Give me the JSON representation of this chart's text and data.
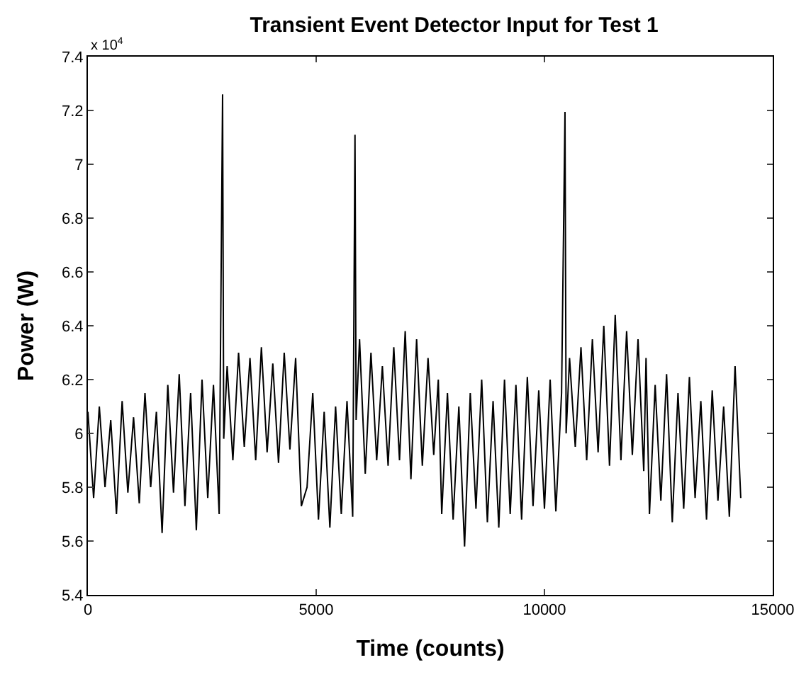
{
  "chart_data": {
    "type": "line",
    "title": "Transient Event Detector Input for Test 1",
    "xlabel": "Time (counts)",
    "ylabel": "Power (W)",
    "annotations": [
      "x 10$^{4}$"
    ],
    "xlim": [
      0,
      15000
    ],
    "xticks": [
      0,
      5000,
      10000,
      15000
    ],
    "ylim": [
      5.4,
      7.4
    ],
    "yticks": [
      5.4,
      5.6,
      5.8,
      6,
      6.2,
      6.4,
      6.6,
      6.8,
      7,
      7.2,
      7.4
    ],
    "marker": "none",
    "line_style": "solid",
    "series": [
      {
        "color": "#000000",
        "x": [
          0,
          125,
          250,
          375,
          500,
          625,
          750,
          875,
          1000,
          1125,
          1250,
          1375,
          1500,
          1625,
          1750,
          1875,
          2000,
          2125,
          2250,
          2375,
          2500,
          2625,
          2750,
          2875,
          2950,
          2975,
          3050,
          3175,
          3300,
          3425,
          3550,
          3675,
          3800,
          3925,
          4050,
          4175,
          4300,
          4425,
          4550,
          4675,
          4800,
          4925,
          5050,
          5175,
          5300,
          5425,
          5550,
          5675,
          5800,
          5850,
          5875,
          5950,
          6075,
          6200,
          6325,
          6450,
          6575,
          6700,
          6825,
          6950,
          7075,
          7200,
          7325,
          7450,
          7575,
          7675,
          7750,
          7875,
          8000,
          8125,
          8250,
          8375,
          8500,
          8625,
          8750,
          8875,
          9000,
          9125,
          9250,
          9375,
          9500,
          9625,
          9750,
          9875,
          10000,
          10125,
          10250,
          10375,
          10450,
          10475,
          10550,
          10675,
          10800,
          10925,
          11050,
          11175,
          11300,
          11425,
          11550,
          11675,
          11800,
          11925,
          12050,
          12175,
          12225,
          12300,
          12425,
          12550,
          12675,
          12800,
          12925,
          13050,
          13175,
          13300,
          13425,
          13550,
          13675,
          13800,
          13925,
          14050,
          14175,
          14300
        ],
        "values": [
          6.08,
          5.76,
          6.1,
          5.8,
          6.05,
          5.7,
          6.12,
          5.78,
          6.06,
          5.74,
          6.15,
          5.8,
          6.08,
          5.63,
          6.18,
          5.78,
          6.22,
          5.73,
          6.15,
          5.64,
          6.2,
          5.76,
          6.18,
          5.7,
          7.26,
          5.98,
          6.25,
          5.9,
          6.3,
          5.95,
          6.28,
          5.9,
          6.32,
          5.93,
          6.26,
          5.89,
          6.3,
          5.94,
          6.28,
          5.73,
          5.8,
          6.15,
          5.68,
          6.08,
          5.65,
          6.1,
          5.7,
          6.12,
          5.69,
          7.11,
          6.05,
          6.35,
          5.85,
          6.3,
          5.9,
          6.25,
          5.88,
          6.32,
          5.9,
          6.38,
          5.83,
          6.35,
          5.88,
          6.28,
          5.92,
          6.2,
          5.7,
          6.15,
          5.68,
          6.1,
          5.58,
          6.15,
          5.72,
          6.2,
          5.67,
          6.12,
          5.65,
          6.2,
          5.7,
          6.18,
          5.68,
          6.21,
          5.73,
          6.16,
          5.72,
          6.2,
          5.71,
          6.15,
          7.195,
          6.0,
          6.28,
          5.95,
          6.32,
          5.9,
          6.35,
          5.93,
          6.4,
          5.88,
          6.44,
          5.9,
          6.38,
          5.92,
          6.35,
          5.86,
          6.28,
          5.7,
          6.18,
          5.75,
          6.22,
          5.67,
          6.15,
          5.72,
          6.21,
          5.76,
          6.12,
          5.68,
          6.16,
          5.75,
          6.1,
          5.69,
          6.25,
          5.76
        ]
      }
    ]
  }
}
